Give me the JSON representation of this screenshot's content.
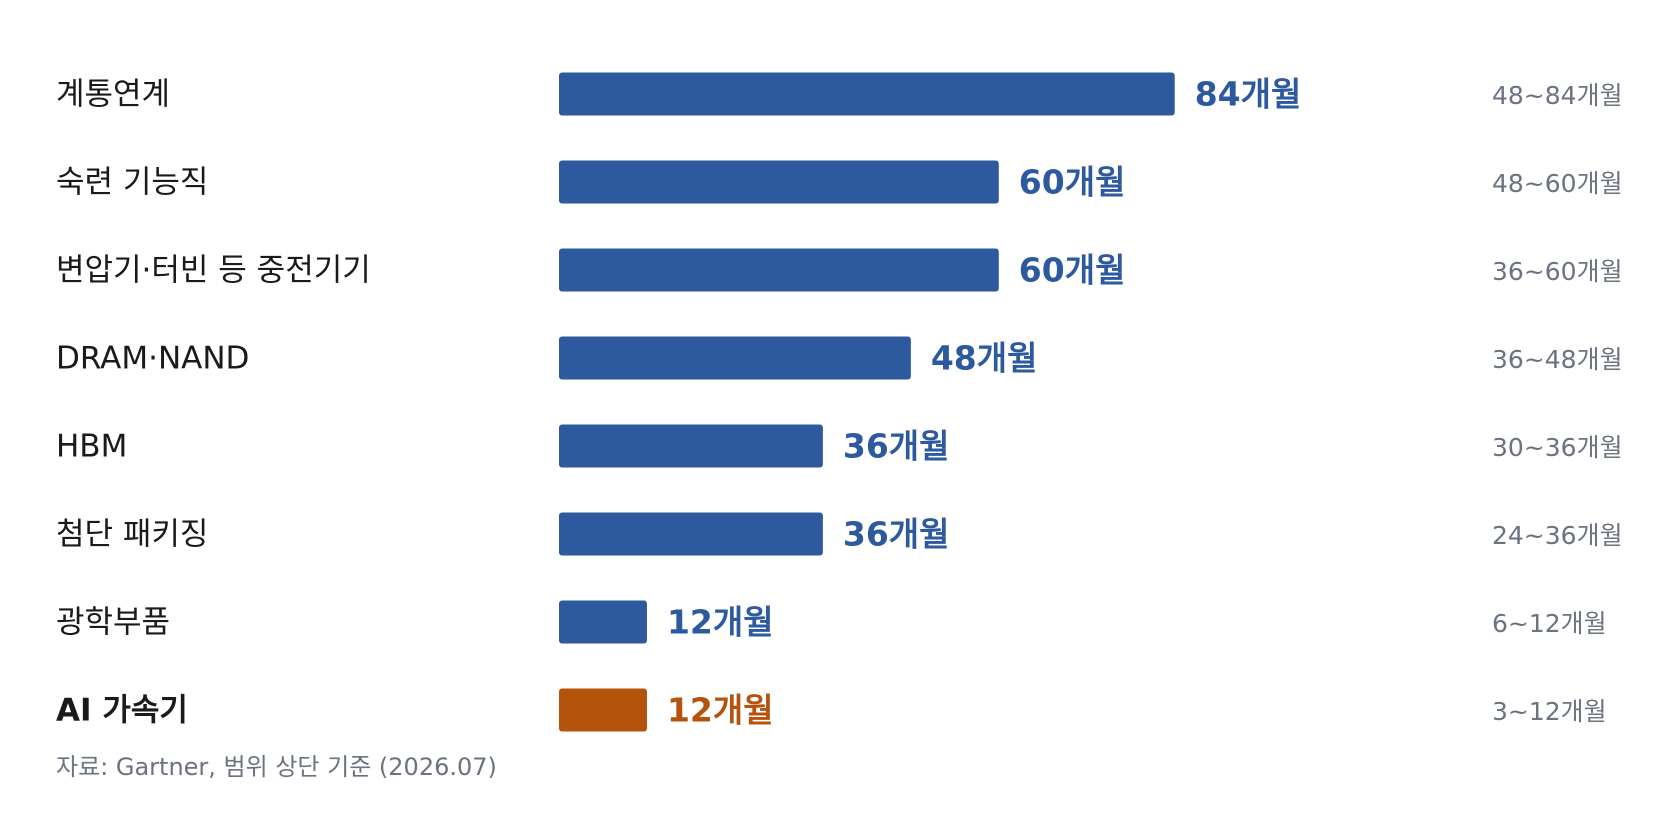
{
  "chart_data": {
    "type": "bar",
    "orientation": "horizontal",
    "categories": [
      "계통연계",
      "숙련 기능직",
      "변압기·터빈 등 중전기기",
      "DRAM·NAND",
      "HBM",
      "첨단 패키징",
      "광학부품",
      "AI 가속기"
    ],
    "values": [
      84,
      60,
      60,
      48,
      36,
      36,
      12,
      12
    ],
    "value_labels": [
      "84개월",
      "60개월",
      "60개월",
      "48개월",
      "36개월",
      "36개월",
      "12개월",
      "12개월"
    ],
    "ranges": [
      "48~84개월",
      "48~60개월",
      "36~60개월",
      "36~48개월",
      "30~36개월",
      "24~36개월",
      "6~12개월",
      "3~12개월"
    ],
    "colors": [
      "#2d5a9e",
      "#2d5a9e",
      "#2d5a9e",
      "#2d5a9e",
      "#2d5a9e",
      "#2d5a9e",
      "#2d5a9e",
      "#b5530c"
    ],
    "source": "자료: Gartner, 범위 상단 기준 (2026.07)"
  }
}
